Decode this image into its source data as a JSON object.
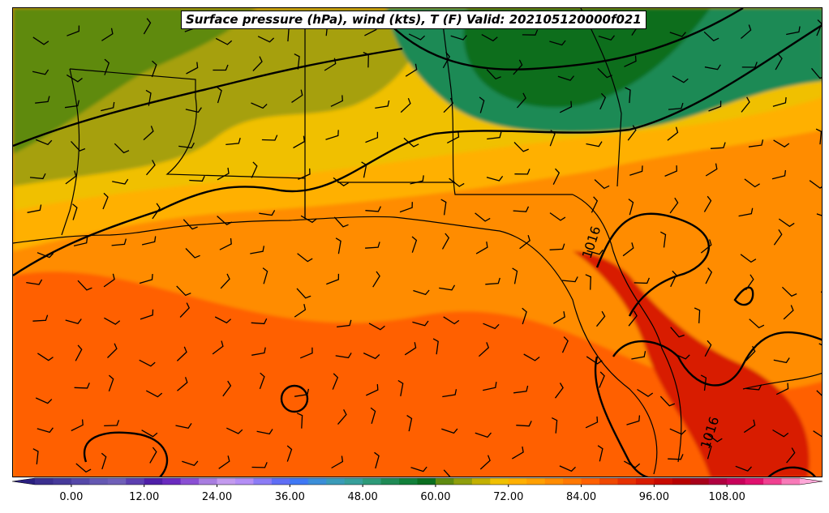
{
  "title": "Surface pressure (hPa), wind (kts), T (F) Valid: 202105120000f021",
  "isobar_labels": [
    "1016",
    "1016"
  ],
  "colorbar": {
    "ticks": [
      "0.00",
      "12.00",
      "24.00",
      "36.00",
      "48.00",
      "60.00",
      "72.00",
      "84.00",
      "96.00",
      "108.00"
    ],
    "range": [
      -6,
      120
    ],
    "step": 3,
    "colors": [
      "#3b2f8f",
      "#463a9a",
      "#5548a8",
      "#6458b2",
      "#6f5fb8",
      "#5c3fb0",
      "#4f1fa8",
      "#6a2bbf",
      "#8a4fd4",
      "#a87de0",
      "#c39aee",
      "#b48ef5",
      "#8c7cf5",
      "#5f6ef5",
      "#3f78f5",
      "#3b8ed8",
      "#3a9bb8",
      "#379f9a",
      "#2e9a78",
      "#1f8a55",
      "#12803a",
      "#0b6e1f",
      "#5e8a10",
      "#8f9e0c",
      "#c3b000",
      "#f0c000",
      "#ffb000",
      "#ffa000",
      "#ff8c00",
      "#ff7800",
      "#ff6000",
      "#f04800",
      "#e63000",
      "#d81a00",
      "#c80a00",
      "#b80000",
      "#a8001a",
      "#b00040",
      "#c8005a",
      "#e0106e",
      "#f04090",
      "#f87ab8"
    ],
    "under_color": "#2a2080",
    "over_color": "#ffa8d8"
  },
  "temperature_regions": [
    {
      "name": "north-band-olive",
      "color": "#a6a00e"
    },
    {
      "name": "northwest-green",
      "color": "#5e8a10"
    },
    {
      "name": "northeast-forest",
      "color": "#1f8a55"
    },
    {
      "name": "northeast-dark",
      "color": "#0b6e1f"
    },
    {
      "name": "mid-yellow",
      "color": "#f0c000"
    },
    {
      "name": "amber",
      "color": "#ffb000"
    },
    {
      "name": "gulf-orange",
      "color": "#ff8c00"
    },
    {
      "name": "south-red-orange",
      "color": "#ff6000"
    },
    {
      "name": "florida-hot",
      "color": "#d81a00"
    }
  ]
}
